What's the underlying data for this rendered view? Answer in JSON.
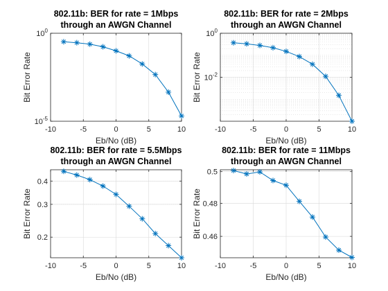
{
  "colors": {
    "line": "#0072BD",
    "axis": "#262626",
    "grid": "#d9d9d9"
  },
  "chart_data": [
    {
      "type": "line",
      "title": [
        "802.11b: BER for rate = 1Mbps",
        "through an AWGN Channel"
      ],
      "xlabel": "Eb/No (dB)",
      "ylabel": "Bit Error Rate",
      "xlim": [
        -10,
        10
      ],
      "xticks": [
        -10,
        -5,
        0,
        5,
        10
      ],
      "yscale": "log",
      "ylim": [
        1e-05,
        1
      ],
      "yticks": [
        {
          "v": 1,
          "base": "10",
          "exp": "0"
        },
        {
          "v": 1e-05,
          "base": "10",
          "exp": "-5"
        }
      ],
      "minor_grid": false,
      "marker": "asterisk",
      "series": [
        {
          "x": [
            -8,
            -6,
            -4,
            -2,
            0,
            2,
            4,
            6,
            8,
            10
          ],
          "y": [
            0.33,
            0.29,
            0.24,
            0.17,
            0.1,
            0.052,
            0.018,
            0.0045,
            0.00045,
            2e-05
          ]
        }
      ]
    },
    {
      "type": "line",
      "title": [
        "802.11b: BER for rate = 2Mbps",
        "through an AWGN Channel"
      ],
      "xlabel": "Eb/No (dB)",
      "ylabel": "Bit Error Rate",
      "xlim": [
        -10,
        10
      ],
      "xticks": [
        -10,
        -5,
        0,
        5,
        10
      ],
      "yscale": "log",
      "ylim": [
        0.0001,
        1
      ],
      "yticks": [
        {
          "v": 1,
          "base": "10",
          "exp": "0"
        },
        {
          "v": 0.01,
          "base": "10",
          "exp": "-2"
        }
      ],
      "minor_grid": true,
      "marker": "asterisk",
      "series": [
        {
          "x": [
            -8,
            -6,
            -4,
            -2,
            0,
            2,
            4,
            6,
            8,
            10
          ],
          "y": [
            0.37,
            0.33,
            0.28,
            0.22,
            0.15,
            0.087,
            0.039,
            0.011,
            0.0015,
            0.0001
          ]
        }
      ]
    },
    {
      "type": "line",
      "title": [
        "802.11b: BER for rate = 5.5Mbps",
        "through an AWGN Channel"
      ],
      "xlabel": "Eb/No (dB)",
      "ylabel": "Bit Error Rate",
      "xlim": [
        -10,
        10
      ],
      "xticks": [
        -10,
        -5,
        0,
        5,
        10
      ],
      "yscale": "log",
      "ylim": [
        0.155,
        0.46
      ],
      "yticks": [
        {
          "v": 0.4,
          "label": "0.4"
        },
        {
          "v": 0.3,
          "label": "0.3"
        },
        {
          "v": 0.2,
          "label": "0.2"
        }
      ],
      "minor_grid": true,
      "marker": "asterisk",
      "series": [
        {
          "x": [
            -8,
            -6,
            -4,
            -2,
            0,
            2,
            4,
            6,
            8,
            10
          ],
          "y": [
            0.451,
            0.431,
            0.407,
            0.376,
            0.339,
            0.293,
            0.251,
            0.209,
            0.18,
            0.155
          ]
        }
      ]
    },
    {
      "type": "line",
      "title": [
        "802.11b: BER for rate = 11Mbps",
        "through an AWGN Channel"
      ],
      "xlabel": "Eb/No (dB)",
      "ylabel": "Bit Error Rate",
      "xlim": [
        -10,
        10
      ],
      "xticks": [
        -10,
        -5,
        0,
        5,
        10
      ],
      "yscale": "log",
      "ylim": [
        0.4475,
        0.5012
      ],
      "yticks": [
        {
          "v": 0.5,
          "label": "0.5"
        },
        {
          "v": 0.48,
          "label": "0.48"
        },
        {
          "v": 0.46,
          "label": "0.46"
        }
      ],
      "minor_grid": true,
      "marker": "asterisk",
      "series": [
        {
          "x": [
            -8,
            -6,
            -4,
            -2,
            0,
            2,
            4,
            6,
            8,
            10
          ],
          "y": [
            0.5007,
            0.4985,
            0.4998,
            0.4943,
            0.4913,
            0.4812,
            0.4716,
            0.4596,
            0.4519,
            0.4477
          ]
        }
      ]
    }
  ]
}
